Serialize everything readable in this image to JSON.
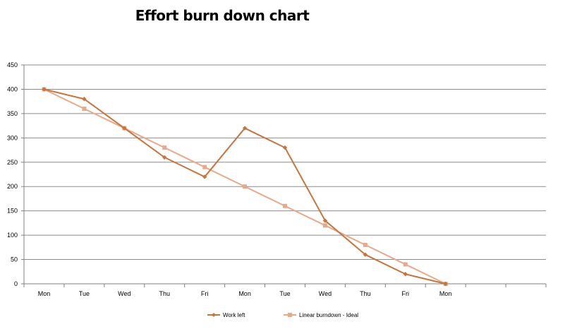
{
  "chart_data": {
    "type": "line",
    "title": "Effort burn down chart",
    "categories": [
      "Mon",
      "Tue",
      "Wed",
      "Thu",
      "Fri",
      "Mon",
      "Tue",
      "Wed",
      "Thu",
      "Fri",
      "Mon"
    ],
    "y_ticks": [
      "0",
      "50",
      "100",
      "150",
      "200",
      "250",
      "300",
      "350",
      "400",
      "450"
    ],
    "ylim": [
      0,
      450
    ],
    "grid": true,
    "legend_position": "bottom",
    "series": [
      {
        "name": "Work left",
        "color": "#c8743c",
        "marker": "diamond",
        "values": [
          400,
          380,
          320,
          260,
          220,
          320,
          280,
          130,
          60,
          20,
          0
        ]
      },
      {
        "name": "Linear burndown - Ideal",
        "color": "#e8a98a",
        "marker": "square",
        "values": [
          400,
          360,
          320,
          280,
          240,
          200,
          160,
          120,
          80,
          40,
          0
        ]
      }
    ]
  }
}
